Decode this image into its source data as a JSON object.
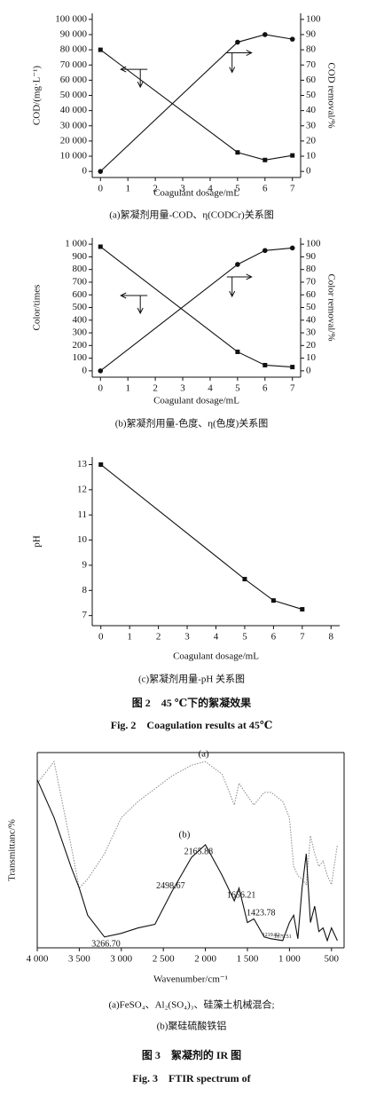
{
  "chart_data": [
    {
      "type": "line",
      "x": [
        0,
        5,
        6,
        7
      ],
      "xlim": [
        -0.3,
        7.3
      ],
      "xticks": [
        0,
        1,
        2,
        3,
        4,
        5,
        6,
        7
      ],
      "ylim": [
        -4000,
        104000
      ],
      "yticks": [
        0,
        {
          "value": 10000,
          "label": "10 000"
        },
        {
          "value": 20000,
          "label": "20 000"
        },
        {
          "value": 30000,
          "label": "30 000"
        },
        {
          "value": 40000,
          "label": "40 000"
        },
        {
          "value": 50000,
          "label": "50 000"
        },
        {
          "value": 60000,
          "label": "60 000"
        },
        {
          "value": 70000,
          "label": "70 000"
        },
        {
          "value": 80000,
          "label": "80 000"
        },
        {
          "value": 90000,
          "label": "90 000"
        },
        {
          "value": 100000,
          "label": "100 000"
        }
      ],
      "y2lim": [
        -4,
        104
      ],
      "y2ticks": [
        0,
        10,
        20,
        30,
        40,
        50,
        60,
        70,
        80,
        90,
        100
      ],
      "xlabel": "Coagulant dosage/mL",
      "ylabel": "COD/(mg·L⁻¹)",
      "y2label": "COD removal/%",
      "series": [
        {
          "name": "COD",
          "color": "#111",
          "marker": "square",
          "values": [
            80000,
            12500,
            7500,
            10500
          ]
        },
        {
          "name": "COD removal",
          "color": "#111",
          "marker": "circle",
          "axis": "y2",
          "values": [
            0,
            85,
            90,
            87
          ]
        }
      ],
      "caption": "(a)絮凝剂用量-COD、η(CODCr)关系图"
    },
    {
      "type": "line",
      "x": [
        0,
        5,
        6,
        7
      ],
      "xlim": [
        -0.3,
        7.3
      ],
      "xticks": [
        0,
        1,
        2,
        3,
        4,
        5,
        6,
        7
      ],
      "ylim": [
        -50,
        1050
      ],
      "yticks": [
        0,
        100,
        200,
        300,
        400,
        500,
        600,
        700,
        800,
        900,
        {
          "value": 1000,
          "label": "1 000"
        }
      ],
      "y2lim": [
        -5,
        105
      ],
      "y2ticks": [
        0,
        10,
        20,
        30,
        40,
        50,
        60,
        70,
        80,
        90,
        100
      ],
      "xlabel": "Coagulant dosage/mL",
      "ylabel": "Color/times",
      "y2label": "Color removal/%",
      "series": [
        {
          "name": "Color",
          "color": "#111",
          "marker": "square",
          "values": [
            980,
            150,
            45,
            30
          ]
        },
        {
          "name": "Color removal",
          "color": "#111",
          "marker": "circle",
          "axis": "y2",
          "values": [
            0,
            84,
            95,
            97
          ]
        }
      ],
      "caption": "(b)絮凝剂用量-色度、η(色度)关系图"
    },
    {
      "type": "line",
      "x": [
        0,
        5,
        6,
        7
      ],
      "xlim": [
        -0.3,
        8.3
      ],
      "xticks": [
        0,
        1,
        2,
        3,
        4,
        5,
        6,
        7,
        8
      ],
      "ylim": [
        6.6,
        13.3
      ],
      "yticks": [
        7,
        8,
        9,
        10,
        11,
        12,
        13
      ],
      "xlabel": "Coagulant dosage/mL",
      "ylabel": "pH",
      "series": [
        {
          "name": "pH",
          "color": "#111",
          "marker": "square",
          "values": [
            13,
            8.45,
            7.6,
            7.25
          ]
        }
      ],
      "caption": "(c)絮凝剂用量-pH 关系图"
    },
    {
      "type": "line",
      "x": [
        4000,
        3800,
        3600,
        3500,
        3400,
        3200,
        3000,
        2800,
        2600,
        2400,
        2165,
        2000,
        1800,
        1656,
        1600,
        1500,
        1423,
        1300,
        1220,
        1080,
        1000,
        950,
        900,
        850,
        800,
        750,
        700,
        650,
        600,
        550,
        500,
        430
      ],
      "xlim": [
        4000,
        350
      ],
      "xticks": [
        {
          "value": 4000,
          "label": "4 000"
        },
        {
          "value": 3500,
          "label": "3 500"
        },
        {
          "value": 3000,
          "label": "3 000"
        },
        {
          "value": 2500,
          "label": "2 500"
        },
        {
          "value": 2000,
          "label": "2 000"
        },
        {
          "value": 1500,
          "label": "1 500"
        },
        {
          "value": 1000,
          "label": "1 000"
        },
        500
      ],
      "ylim": [
        -3,
        105
      ],
      "xlabel": "Wavenumber/cm⁻¹",
      "ylabel": "Transmittanc/%",
      "series": [
        {
          "name": "(a)",
          "color": "#888",
          "style": "dotted",
          "values": [
            88,
            100,
            54,
            30,
            35,
            49,
            69,
            78,
            85,
            92,
            98,
            100,
            93,
            76,
            88,
            81,
            76,
            83,
            83,
            78,
            69,
            42,
            37,
            35,
            32,
            59,
            49,
            42,
            45,
            37,
            32,
            54
          ]
        },
        {
          "name": "(b)",
          "color": "#111",
          "values": [
            90,
            69,
            42,
            30,
            15,
            3,
            5,
            8,
            10,
            28,
            47,
            54,
            37,
            23,
            30,
            11,
            13,
            3,
            2,
            1,
            11,
            15,
            2,
            30,
            49,
            11,
            20,
            6,
            8,
            1,
            8,
            1
          ]
        }
      ],
      "annotations": [
        {
          "text": "3266.70",
          "x": 3266.7
        },
        {
          "text": "2498.67",
          "x": 2498.67
        },
        {
          "text": "2165.88",
          "x": 2165.88
        },
        {
          "text": "1656.21",
          "x": 1656.21
        },
        {
          "text": "1423.78",
          "x": 1423.78
        },
        {
          "text": "1219.82",
          "x": 1219.82
        },
        {
          "text": "1079.51",
          "x": 1079.51
        }
      ],
      "caption": [
        "(a)FeSO₄、Al₂(SO₄)₃、硅藻土机械混合;",
        "(b)聚硅硫酸铁铝"
      ]
    }
  ],
  "figure_2": {
    "title_zh": "图 2　45 ℃下的絮凝效果",
    "title_en": "Fig. 2　Coagulation results at 45℃"
  },
  "figure_3": {
    "title_zh": "图 3　絮凝剂的 IR 图",
    "title_en": "Fig. 3　FTIR spectrum of"
  }
}
